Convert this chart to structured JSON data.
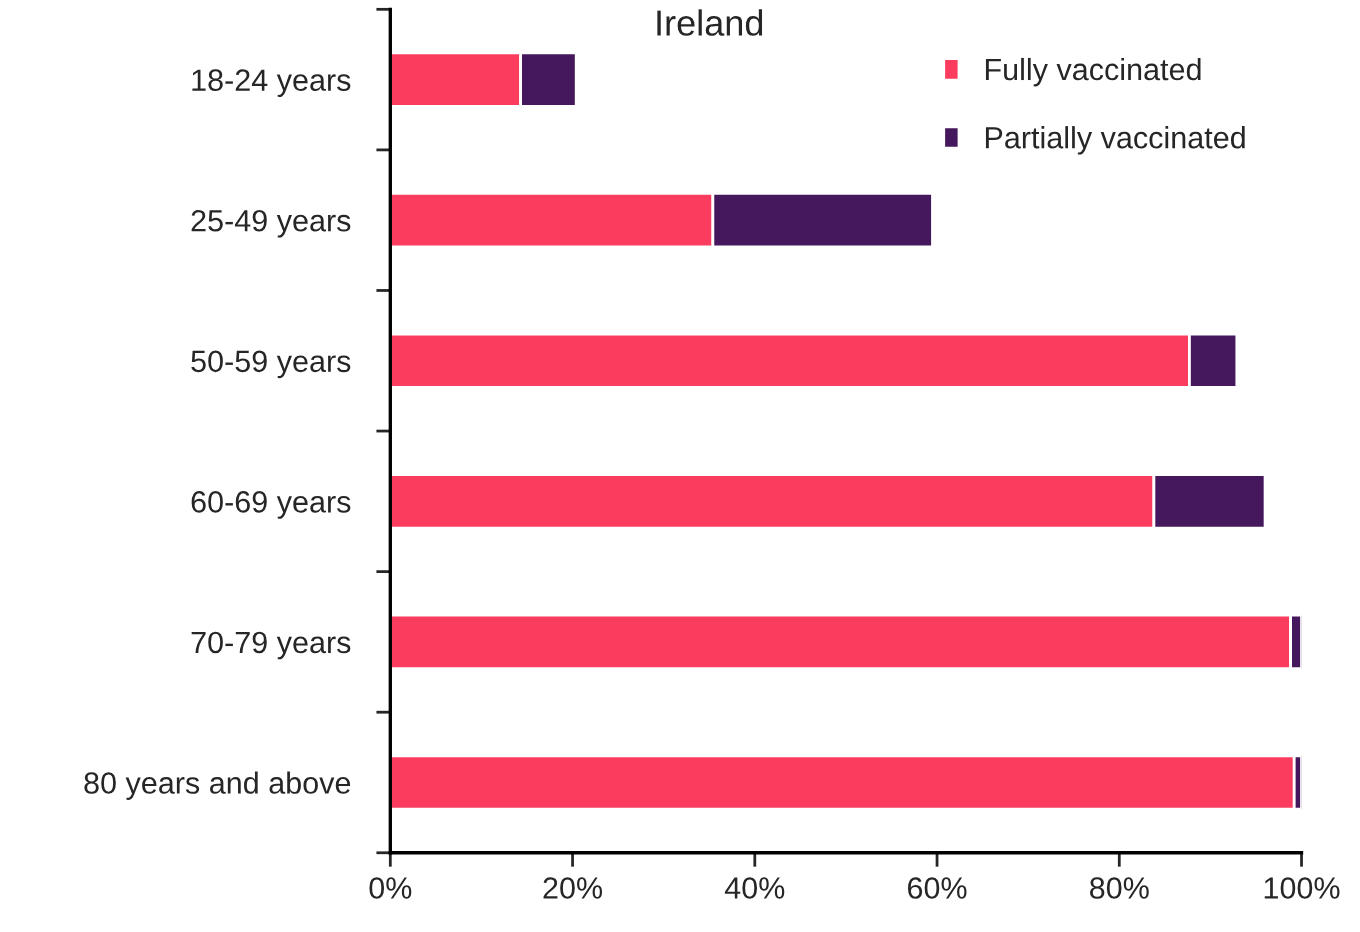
{
  "chart_data": {
    "type": "bar",
    "title": "Ireland",
    "orientation": "horizontal",
    "stacked": true,
    "categories": [
      "18-24 years",
      "25-49 years",
      "50-59 years",
      "60-69 years",
      "70-79 years",
      "80 years and above"
    ],
    "series": [
      {
        "name": "Fully vaccinated",
        "color": "#fb3c5f",
        "values": [
          14.3,
          35.4,
          87.7,
          83.8,
          98.8,
          99.2
        ]
      },
      {
        "name": "Partially vaccinated",
        "color": "#45175d",
        "values": [
          6.1,
          24.1,
          5.2,
          12.2,
          1.2,
          0.8
        ]
      }
    ],
    "xlim": [
      0,
      100
    ],
    "xticks": [
      {
        "value": 0,
        "label": "0%"
      },
      {
        "value": 20,
        "label": "20%"
      },
      {
        "value": 40,
        "label": "40%"
      },
      {
        "value": 60,
        "label": "60%"
      },
      {
        "value": 80,
        "label": "80%"
      },
      {
        "value": 100,
        "label": "100%"
      }
    ],
    "grid": false,
    "legend": "top right"
  }
}
